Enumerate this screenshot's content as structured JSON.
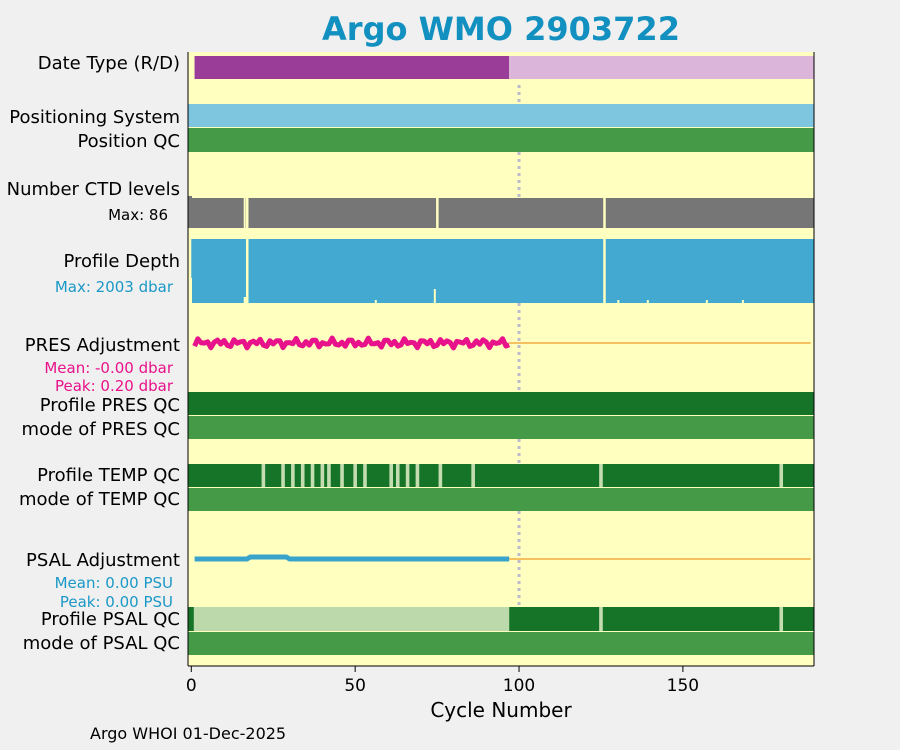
{
  "title": "Argo WMO 2903722",
  "footer": "Argo WHOI 01-Dec-2025",
  "chart_data": {
    "type": "timeline",
    "xlabel": "Cycle Number",
    "xlim": [
      -1,
      190
    ],
    "x_ticks": [
      "0",
      "50",
      "100",
      "150"
    ],
    "tick_values": [
      0,
      50,
      100,
      150
    ],
    "marker_cycle": 100,
    "rows": [
      {
        "name": "row-date-type",
        "label": "Date Type (R/D)",
        "segments": [
          {
            "from": 1,
            "to": 97,
            "color": "#9a3d98"
          },
          {
            "from": 97,
            "to": 190,
            "color": "#dbb6da"
          }
        ]
      },
      {
        "name": "row-positioning-system",
        "label": "Positioning System",
        "segments": [
          {
            "from": -1,
            "to": 190,
            "color": "#7ec6e0"
          }
        ]
      },
      {
        "name": "row-position-qc",
        "label": "Position QC",
        "segments": [
          {
            "from": -1,
            "to": 190,
            "color": "#449a47"
          }
        ]
      },
      {
        "name": "row-number-ctd-levels",
        "label": "Number CTD levels",
        "sublabel": "Max: 86",
        "color": "#767676",
        "gaps": [
          17,
          75,
          126
        ]
      },
      {
        "name": "row-profile-depth",
        "label": "Profile Depth",
        "sublabel": "Max: 2003 dbar",
        "sublabel_color": "#1a98c6",
        "color": "#43a9d0",
        "gaps": [
          17,
          126
        ]
      },
      {
        "name": "row-pres-adjustment",
        "label": "PRES Adjustment",
        "sublabels": [
          "Mean: -0.00 dbar",
          "Peak: 0.20 dbar"
        ],
        "sublabel_color": "#e8128a",
        "series_color": "#e8128a",
        "series_end": 97,
        "line_color": "#f5c060"
      },
      {
        "name": "row-profile-pres-qc",
        "label": "Profile PRES QC",
        "segments": [
          {
            "from": -1,
            "to": 190,
            "color": "#167428"
          }
        ]
      },
      {
        "name": "row-mode-pres-qc",
        "label": "mode of PRES QC",
        "segments": [
          {
            "from": -1,
            "to": 190,
            "color": "#449a47"
          }
        ]
      },
      {
        "name": "row-profile-temp-qc",
        "label": "Profile TEMP QC",
        "base_color": "#167428",
        "mark_color": "#c3ddb0",
        "marks": [
          22,
          28,
          31,
          34,
          37,
          40,
          42,
          46,
          50,
          53,
          61,
          63,
          66,
          69,
          76,
          86,
          125,
          180
        ]
      },
      {
        "name": "row-mode-temp-qc",
        "label": "mode of TEMP QC",
        "segments": [
          {
            "from": -1,
            "to": 190,
            "color": "#449a47"
          }
        ]
      },
      {
        "name": "row-psal-adjustment",
        "label": "PSAL Adjustment",
        "sublabels": [
          "Mean: 0.00 PSU",
          "Peak: 0.00 PSU"
        ],
        "sublabel_color": "#1a98c6",
        "series_color": "#3aa3cc",
        "series_end": 97,
        "line_color": "#f5c060"
      },
      {
        "name": "row-profile-psal-qc",
        "label": "Profile PSAL QC",
        "segments": [
          {
            "from": -1,
            "to": 0.8,
            "color": "#167428"
          },
          {
            "from": 0.8,
            "to": 97,
            "color": "#bcd9ac"
          },
          {
            "from": 97,
            "to": 190,
            "color": "#167428"
          }
        ],
        "mark_color": "#c3ddb0",
        "marks": [
          125,
          180
        ]
      },
      {
        "name": "row-mode-psal-qc",
        "label": "mode of PSAL QC",
        "segments": [
          {
            "from": -1,
            "to": 190,
            "color": "#449a47"
          }
        ]
      }
    ],
    "background": "#ffffc0"
  }
}
